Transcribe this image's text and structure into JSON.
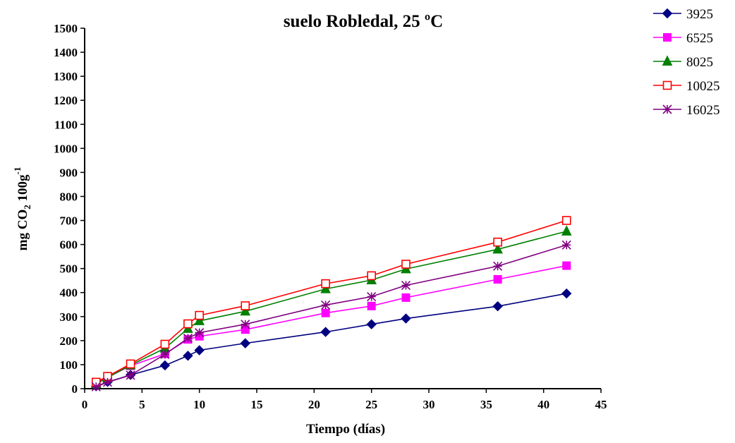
{
  "chart_data": {
    "type": "line",
    "title": "suelo Robledal,  25 ºC",
    "xlabel": "Tiempo (días)",
    "ylabel": {
      "main": "mg CO",
      "sub": "2",
      "after": " 100g",
      "sup": "-1"
    },
    "xlim": [
      0,
      45
    ],
    "ylim": [
      0,
      1500
    ],
    "xticks": [
      "0",
      "5",
      "10",
      "15",
      "20",
      "25",
      "30",
      "35",
      "40",
      "45"
    ],
    "yticks": [
      "0",
      "100",
      "200",
      "300",
      "400",
      "500",
      "600",
      "700",
      "800",
      "900",
      "1000",
      "1100",
      "1200",
      "1300",
      "1400",
      "1500"
    ],
    "grid": false,
    "legend_position": "top-right",
    "x": [
      1,
      2,
      4,
      7,
      9,
      10,
      14,
      21,
      25,
      28,
      36,
      42
    ],
    "series": [
      {
        "name": "3925",
        "color": "#000080",
        "marker": "diamond",
        "values": [
          10,
          28,
          57,
          97,
          137,
          160,
          189,
          236,
          268,
          292,
          343,
          396
        ]
      },
      {
        "name": "6525",
        "color": "#ff00ff",
        "marker": "square",
        "values": [
          22,
          48,
          95,
          145,
          205,
          218,
          246,
          315,
          344,
          379,
          455,
          512
        ]
      },
      {
        "name": "8025",
        "color": "#008000",
        "marker": "triangle",
        "values": [
          20,
          46,
          98,
          168,
          250,
          282,
          322,
          415,
          452,
          498,
          580,
          655
        ]
      },
      {
        "name": "10025",
        "color": "#ff0000",
        "marker": "square-open",
        "values": [
          27,
          51,
          103,
          185,
          270,
          305,
          345,
          437,
          470,
          518,
          610,
          700
        ]
      },
      {
        "name": "16025",
        "color": "#800080",
        "marker": "asterisk",
        "values": [
          8,
          27,
          56,
          143,
          210,
          233,
          268,
          348,
          383,
          430,
          510,
          598
        ]
      }
    ]
  }
}
